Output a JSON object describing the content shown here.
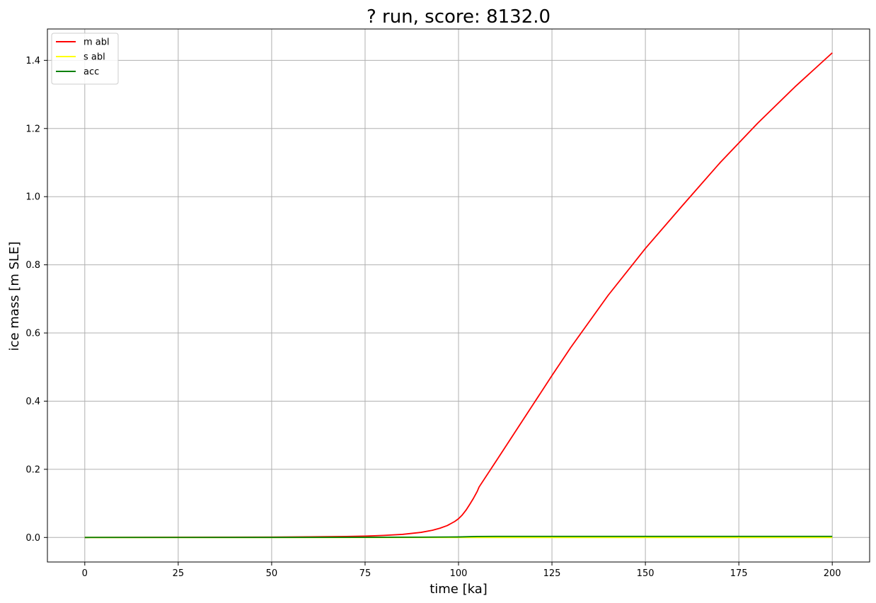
{
  "chart_data": {
    "type": "line",
    "title": "? run, score: 8132.0",
    "xlabel": "time [ka]",
    "ylabel": "ice mass [m SLE]",
    "xlim": [
      -10,
      210
    ],
    "ylim": [
      -0.072,
      1.492
    ],
    "xticks": [
      0,
      25,
      50,
      75,
      100,
      125,
      150,
      175,
      200
    ],
    "yticks": [
      0.0,
      0.2,
      0.4,
      0.6,
      0.8,
      1.0,
      1.2,
      1.4
    ],
    "xtick_labels": [
      "0",
      "25",
      "50",
      "75",
      "100",
      "125",
      "150",
      "175",
      "200"
    ],
    "ytick_labels": [
      "0.0",
      "0.2",
      "0.4",
      "0.6",
      "0.8",
      "1.0",
      "1.2",
      "1.4"
    ],
    "grid": true,
    "legend_position": "upper-left",
    "series": [
      {
        "name": "m abl",
        "color": "#ff0000",
        "x": [
          0,
          25,
          50,
          60,
          70,
          75,
          80,
          85,
          90,
          93,
          95,
          97,
          99,
          100,
          101,
          102,
          103,
          104,
          105,
          105.5,
          110,
          115,
          120,
          125,
          130,
          140,
          150,
          160,
          170,
          180,
          190,
          200
        ],
        "values": [
          0,
          0.0005,
          0.001,
          0.0018,
          0.003,
          0.004,
          0.006,
          0.009,
          0.015,
          0.021,
          0.027,
          0.035,
          0.047,
          0.055,
          0.066,
          0.08,
          0.097,
          0.115,
          0.135,
          0.148,
          0.223,
          0.307,
          0.391,
          0.475,
          0.557,
          0.71,
          0.848,
          0.975,
          1.1,
          1.215,
          1.322,
          1.422
        ]
      },
      {
        "name": "s abl",
        "color": "#ffff00",
        "x": [
          0,
          50,
          100,
          105,
          150,
          200
        ],
        "values": [
          0,
          0,
          0,
          0,
          0,
          0
        ]
      },
      {
        "name": "acc",
        "color": "#008000",
        "x": [
          0,
          50,
          75,
          90,
          100,
          105,
          110,
          150,
          200
        ],
        "values": [
          0,
          0.0002,
          0.0005,
          0.0008,
          0.0015,
          0.003,
          0.0032,
          0.0032,
          0.0032
        ]
      }
    ]
  }
}
